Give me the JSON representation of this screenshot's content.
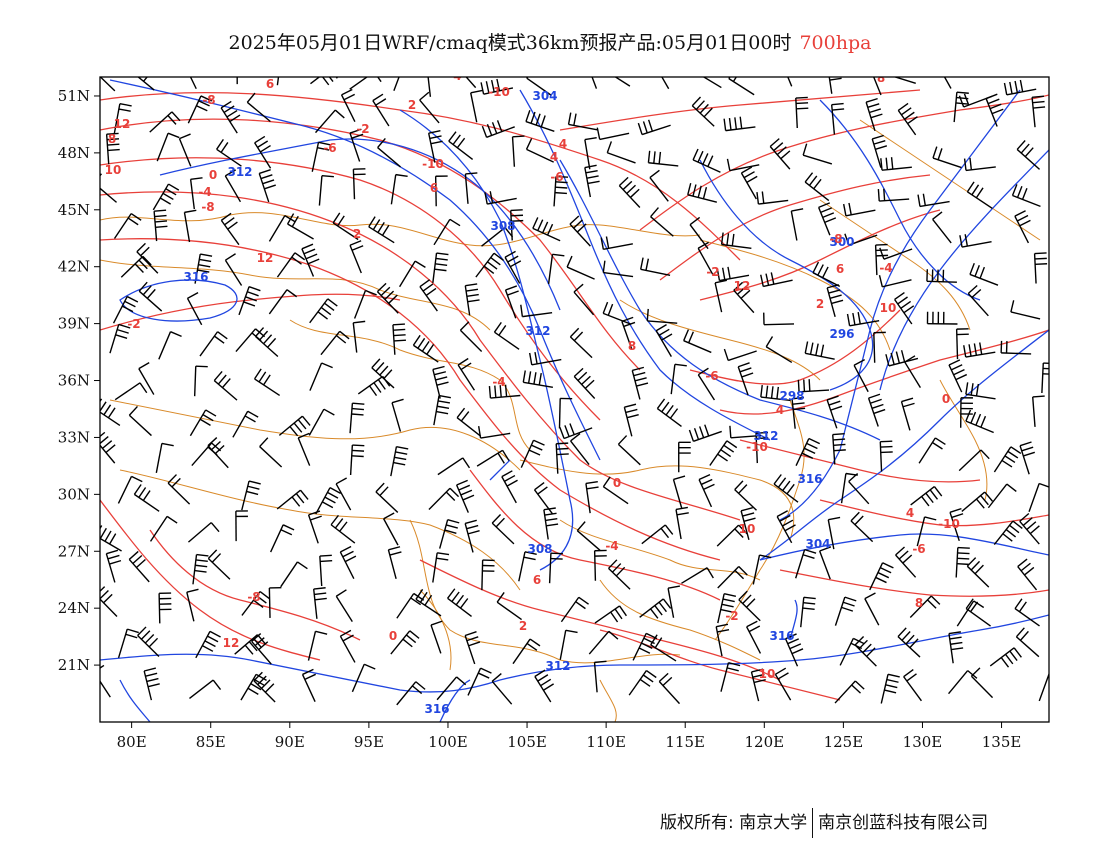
{
  "title": {
    "main": "2025年05月01日WRF/cmaq模式36km预报产品:05月01日00时",
    "level": "700hpa"
  },
  "map": {
    "lon_labels": [
      "80E",
      "85E",
      "90E",
      "95E",
      "100E",
      "105E",
      "110E",
      "115E",
      "120E",
      "125E",
      "130E",
      "135E"
    ],
    "lon_values": [
      80,
      85,
      90,
      95,
      100,
      105,
      110,
      115,
      120,
      125,
      130,
      135
    ],
    "lat_labels": [
      "51N",
      "48N",
      "45N",
      "42N",
      "39N",
      "36N",
      "33N",
      "30N",
      "27N",
      "24N",
      "21N"
    ],
    "lat_values": [
      51,
      48,
      45,
      42,
      39,
      36,
      33,
      30,
      27,
      24,
      21
    ],
    "lon_range": [
      78,
      138
    ],
    "lat_range": [
      18,
      52
    ],
    "colors": {
      "temperature": "#e8403a",
      "height": "#2146e0",
      "border": "#d98a2a",
      "wind": "#000000"
    },
    "height_contour_labels": [
      "304",
      "312",
      "308",
      "316",
      "312",
      "300",
      "296",
      "298",
      "312",
      "316",
      "304",
      "308",
      "316",
      "312",
      "316"
    ],
    "temperature_contour_labels": [
      "-10",
      "-8",
      "-6",
      "-4",
      "-2",
      "0",
      "2",
      "4",
      "6",
      "8",
      "10",
      "12"
    ]
  },
  "copyright": {
    "left": "版权所有: 南京大学",
    "right": "南京创蓝科技有限公司"
  }
}
